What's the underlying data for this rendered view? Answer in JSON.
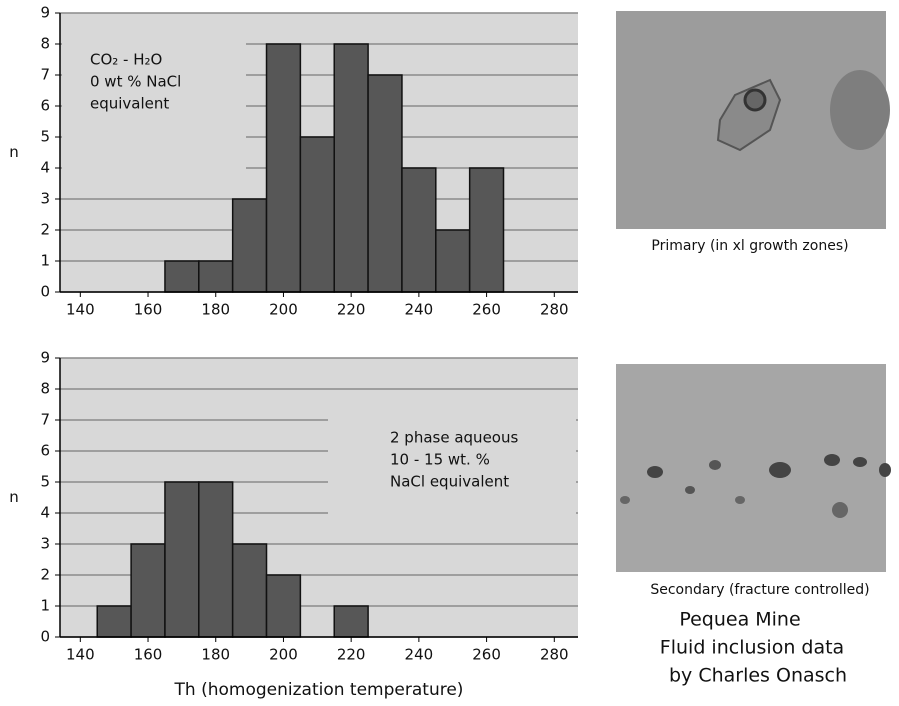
{
  "chart_data": [
    {
      "type": "histogram",
      "y_label": "n",
      "annotation": [
        "CO₂ - H₂O",
        "0 wt % NaCl",
        "equivalent"
      ],
      "bins": [
        165,
        175,
        185,
        195,
        205,
        215,
        225,
        235,
        245,
        255,
        265
      ],
      "counts": [
        1,
        1,
        3,
        8,
        5,
        8,
        7,
        4,
        2,
        4
      ],
      "color": "#575757",
      "xlim": [
        134,
        287
      ],
      "xticks": [
        140,
        160,
        180,
        200,
        220,
        240,
        260,
        280
      ],
      "ylim": [
        0,
        9
      ],
      "yticks": [
        0,
        1,
        2,
        3,
        4,
        5,
        6,
        7,
        8,
        9
      ],
      "grid": true
    },
    {
      "type": "histogram",
      "y_label": "n",
      "x_label": "Th (homogenization temperature)",
      "annotation": [
        "2 phase aqueous",
        "10 - 15 wt. %",
        "NaCl equivalent"
      ],
      "bins": [
        145,
        155,
        165,
        175,
        185,
        195,
        205,
        215,
        225
      ],
      "counts": [
        1,
        3,
        5,
        5,
        3,
        2,
        0,
        1
      ],
      "color": "#575757",
      "xlim": [
        134,
        287
      ],
      "xticks": [
        140,
        160,
        180,
        200,
        220,
        240,
        260,
        280
      ],
      "ylim": [
        0,
        9
      ],
      "yticks": [
        0,
        1,
        2,
        3,
        4,
        5,
        6,
        7,
        8,
        9
      ],
      "grid": true
    }
  ],
  "captions": [
    "Primary (in xl growth zones)",
    "Secondary (fracture controlled)"
  ],
  "credit": [
    "Pequea Mine",
    "Fluid inclusion data",
    "by Charles Onasch"
  ]
}
